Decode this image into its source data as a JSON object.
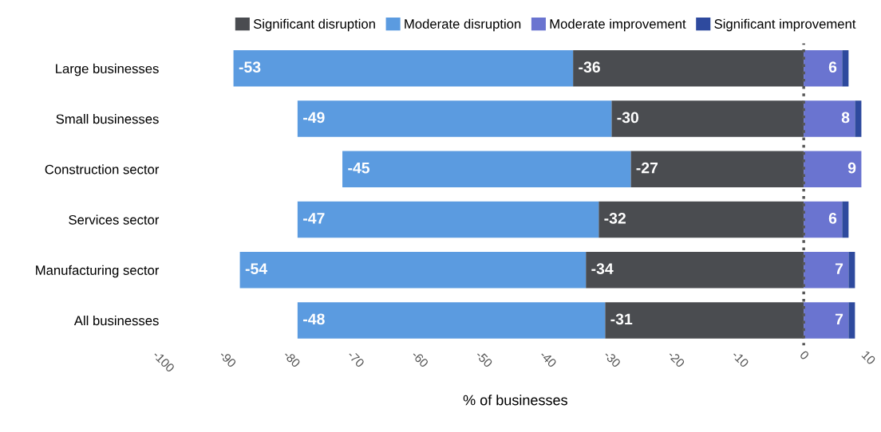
{
  "chart_data": {
    "type": "bar",
    "orientation": "horizontal",
    "stacked": true,
    "xlabel": "% of businesses",
    "categories": [
      "Large businesses",
      "Small businesses",
      "Construction sector",
      "Services sector",
      "Manufacturing sector",
      "All businesses"
    ],
    "series": [
      {
        "name": "Significant disruption",
        "color": "#4a4c50",
        "values": [
          -36,
          -30,
          -27,
          -32,
          -34,
          -31
        ],
        "value_labels": [
          "-36",
          "-30",
          "-27",
          "-32",
          "-34",
          "-31"
        ]
      },
      {
        "name": "Moderate disruption",
        "color": "#5b9be0",
        "values": [
          -53,
          -49,
          -45,
          -47,
          -54,
          -48
        ],
        "value_labels": [
          "-53",
          "-49",
          "-45",
          "-47",
          "-54",
          "-48"
        ]
      },
      {
        "name": "Moderate improvement",
        "color": "#6a74d0",
        "values": [
          6,
          8,
          9,
          6,
          7,
          7
        ],
        "value_labels": [
          "6",
          "8",
          "9",
          "6",
          "7",
          "7"
        ]
      },
      {
        "name": "Significant improvement",
        "color": "#2e4a9e",
        "values": [
          1,
          1,
          null,
          1,
          1,
          1
        ]
      }
    ],
    "xlim": [
      -100,
      10
    ],
    "xticks": [
      -100,
      -90,
      -80,
      -70,
      -60,
      -50,
      -40,
      -30,
      -20,
      -10,
      0,
      10
    ],
    "ref_lines": [
      {
        "axis": "x",
        "value": 0,
        "color": "#555555",
        "line_style": "dotted"
      }
    ],
    "grid": false,
    "legend": "top right"
  }
}
